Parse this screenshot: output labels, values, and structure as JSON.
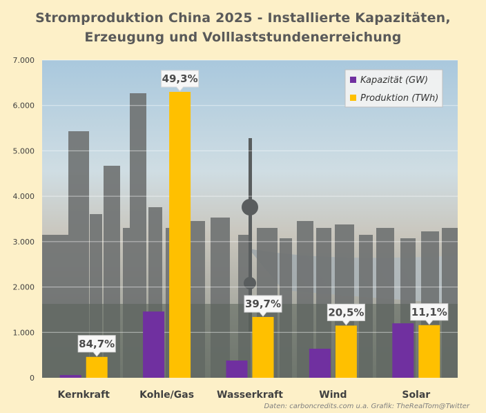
{
  "title_line1": "Stromproduktion China 2025 - Installierte Kapazitäten,",
  "title_line2": "Erzeugung und Volllaststundenerreichung",
  "source": "Daten: carboncredits.com u.a.  Grafik: TheRealTom@Twitter",
  "colors": {
    "capacity": "#7030a0",
    "production": "#ffc000",
    "background": "#fdf0c8",
    "title": "#595959"
  },
  "chart_data": {
    "type": "bar",
    "categories": [
      "Kernkraft",
      "Kohle/Gas",
      "Wasserkraft",
      "Wind",
      "Solar"
    ],
    "series": [
      {
        "name": "Kapazität (GW)",
        "values": [
          60,
          1460,
          380,
          640,
          1200
        ]
      },
      {
        "name": "Produktion (TWh)",
        "values": [
          460,
          6300,
          1340,
          1150,
          1160
        ]
      }
    ],
    "data_labels": [
      "84,7%",
      "49,3%",
      "39,7%",
      "20,5%",
      "11,1%"
    ],
    "yticks": [
      "0",
      "1.000",
      "2.000",
      "3.000",
      "4.000",
      "5.000",
      "6.000",
      "7.000"
    ],
    "ylim": [
      0,
      7000
    ],
    "legend_position": "top-right",
    "grid": true
  }
}
